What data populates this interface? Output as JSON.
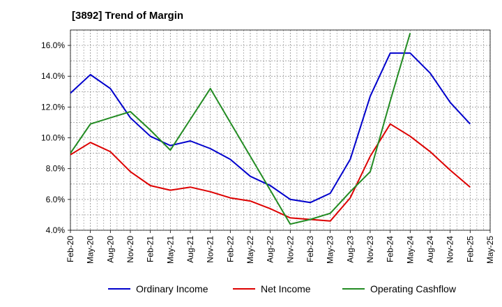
{
  "chart_data": {
    "type": "line",
    "title": "[3892]  Trend of Margin",
    "xlabel": "",
    "ylabel": "",
    "categories": [
      "Feb-20",
      "May-20",
      "Aug-20",
      "Nov-20",
      "Feb-21",
      "May-21",
      "Aug-21",
      "Nov-21",
      "Feb-22",
      "May-22",
      "Aug-22",
      "Nov-22",
      "Feb-23",
      "May-23",
      "Aug-23",
      "Nov-23",
      "Feb-24",
      "May-24",
      "Aug-24",
      "Nov-24",
      "Feb-25",
      "May-25"
    ],
    "y_ticks": [
      "4.0%",
      "6.0%",
      "8.0%",
      "10.0%",
      "12.0%",
      "14.0%",
      "16.0%"
    ],
    "ylim": [
      4.0,
      17.0
    ],
    "grid": true,
    "legend_position": "bottom",
    "series": [
      {
        "name": "Ordinary Income",
        "color": "#0000cc",
        "values": [
          12.9,
          14.1,
          13.2,
          11.3,
          10.1,
          9.5,
          9.8,
          9.3,
          8.6,
          7.5,
          6.9,
          6.0,
          5.8,
          6.4,
          8.6,
          12.7,
          15.5,
          15.5,
          14.2,
          12.3,
          10.9,
          null
        ]
      },
      {
        "name": "Net Income",
        "color": "#dd0000",
        "values": [
          8.9,
          9.7,
          9.1,
          7.8,
          6.9,
          6.6,
          6.8,
          6.5,
          6.1,
          5.9,
          5.4,
          4.8,
          4.7,
          4.6,
          6.1,
          8.8,
          10.9,
          10.1,
          9.1,
          7.9,
          6.8,
          null
        ]
      },
      {
        "name": "Operating Cashflow",
        "color": "#228b22",
        "values": [
          9.0,
          10.9,
          11.3,
          11.7,
          10.5,
          9.2,
          11.2,
          13.2,
          11.0,
          8.8,
          6.6,
          4.4,
          4.7,
          5.1,
          6.5,
          7.8,
          12.4,
          16.8,
          null,
          null,
          null,
          null
        ]
      }
    ]
  }
}
